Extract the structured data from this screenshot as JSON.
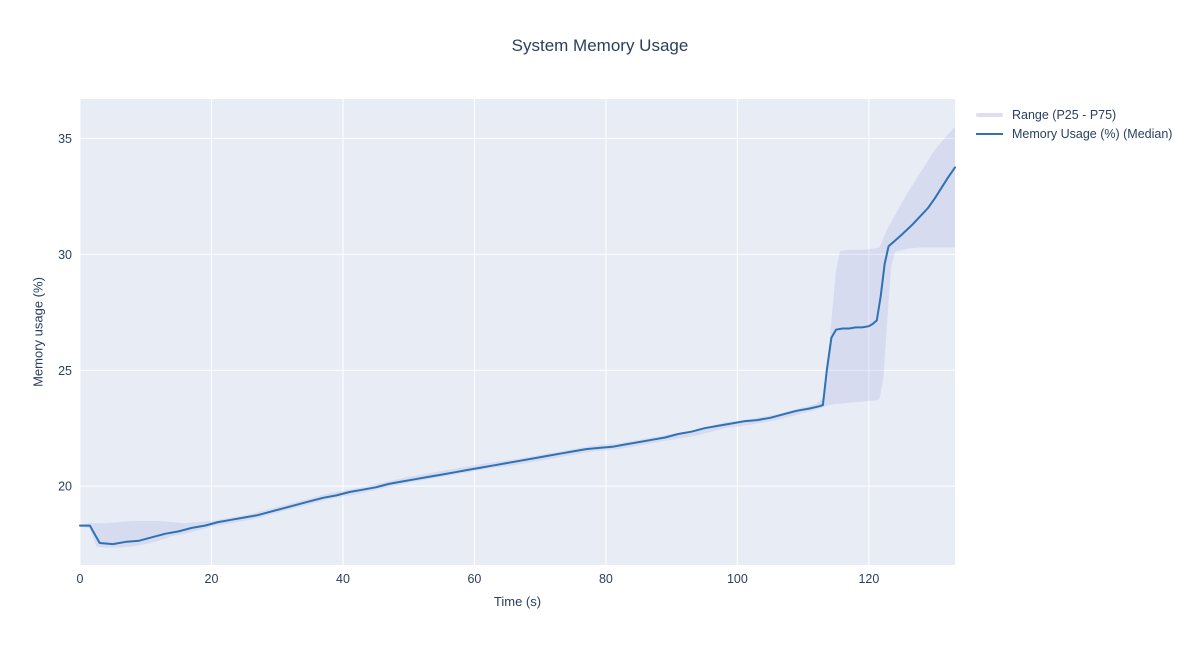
{
  "chart_data": {
    "type": "line",
    "title": "System Memory Usage",
    "xlabel": "Time (s)",
    "ylabel": "Memory usage (%)",
    "xlim": [
      0,
      133.1
    ],
    "ylim": [
      16.6,
      36.7
    ],
    "xticks": [
      0,
      20,
      40,
      60,
      80,
      100,
      120
    ],
    "yticks": [
      20,
      25,
      30,
      35
    ],
    "grid": true,
    "legend_position": "outside-top-right",
    "colors": {
      "background": "#ffffff",
      "plot_bg": "#e8ecf5",
      "grid": "#ffffff",
      "band_fill": "rgba(139,148,216,0.19)",
      "band_swatch": "#dcdef2",
      "line": "#2e72b3",
      "text": "#2a3f5f"
    },
    "series": [
      {
        "name": "Range (P25 - P75)",
        "type": "band",
        "x": [
          0,
          1.5,
          2.5,
          4,
          6,
          8,
          10,
          12,
          14,
          16,
          18,
          20,
          22,
          26,
          30,
          34,
          38,
          42,
          46,
          50,
          54,
          58,
          62,
          66,
          70,
          74,
          78,
          82,
          86,
          90,
          94,
          98,
          102,
          106,
          110,
          112,
          113,
          114,
          115,
          115.6,
          117,
          119,
          121,
          121.6,
          122.2,
          122.8,
          123.4,
          124,
          126,
          128,
          130,
          131.5,
          133.1
        ],
        "upper": [
          18.35,
          18.4,
          18.4,
          18.4,
          18.45,
          18.5,
          18.5,
          18.5,
          18.45,
          18.4,
          18.45,
          18.5,
          18.6,
          18.8,
          19.1,
          19.4,
          19.7,
          19.9,
          20.15,
          20.4,
          20.6,
          20.8,
          21.0,
          21.15,
          21.35,
          21.55,
          21.75,
          21.85,
          22.05,
          22.25,
          22.45,
          22.75,
          22.9,
          23.1,
          23.4,
          23.55,
          23.8,
          26.2,
          29.3,
          30.15,
          30.2,
          30.2,
          30.25,
          30.3,
          30.7,
          31.1,
          31.4,
          31.7,
          32.7,
          33.6,
          34.5,
          35.0,
          35.5
        ],
        "lower": [
          18.25,
          18.2,
          17.4,
          17.35,
          17.35,
          17.4,
          17.5,
          17.65,
          17.85,
          17.95,
          18.1,
          18.25,
          18.35,
          18.55,
          18.85,
          19.15,
          19.45,
          19.65,
          19.9,
          20.15,
          20.35,
          20.55,
          20.75,
          20.9,
          21.1,
          21.3,
          21.5,
          21.6,
          21.8,
          22.0,
          22.2,
          22.5,
          22.65,
          22.85,
          23.15,
          23.3,
          23.4,
          23.5,
          23.55,
          23.55,
          23.6,
          23.65,
          23.7,
          23.75,
          24.6,
          27.2,
          29.5,
          30.1,
          30.25,
          30.3,
          30.3,
          30.3,
          30.3
        ]
      },
      {
        "name": "Memory Usage (%) (Median)",
        "type": "line",
        "x": [
          0,
          1.5,
          2,
          3,
          5,
          7,
          9,
          11,
          13,
          15,
          17,
          19,
          21,
          23,
          25,
          27,
          29,
          31,
          33,
          35,
          37,
          39,
          41,
          43,
          45,
          47,
          49,
          51,
          53,
          55,
          57,
          59,
          61,
          63,
          65,
          67,
          69,
          71,
          73,
          75,
          77,
          79,
          81,
          83,
          85,
          87,
          89,
          91,
          93,
          95,
          97,
          99,
          101,
          103,
          105,
          107,
          109,
          111,
          112.5,
          113,
          113.6,
          114.3,
          115,
          116,
          117,
          118,
          119,
          120,
          120.6,
          121.2,
          121.8,
          122.4,
          123,
          123.8,
          125,
          126.5,
          128,
          129,
          130,
          131,
          132,
          133.1
        ],
        "y": [
          18.3,
          18.3,
          18.05,
          17.55,
          17.5,
          17.6,
          17.65,
          17.8,
          17.95,
          18.05,
          18.2,
          18.3,
          18.45,
          18.55,
          18.65,
          18.75,
          18.9,
          19.05,
          19.2,
          19.35,
          19.5,
          19.6,
          19.75,
          19.85,
          19.95,
          20.1,
          20.2,
          20.3,
          20.4,
          20.5,
          20.6,
          20.7,
          20.8,
          20.9,
          21.0,
          21.1,
          21.2,
          21.3,
          21.4,
          21.5,
          21.6,
          21.65,
          21.7,
          21.8,
          21.9,
          22.0,
          22.1,
          22.25,
          22.35,
          22.5,
          22.6,
          22.7,
          22.8,
          22.85,
          22.95,
          23.1,
          23.25,
          23.35,
          23.45,
          23.5,
          25.0,
          26.4,
          26.75,
          26.8,
          26.8,
          26.85,
          26.85,
          26.9,
          27.0,
          27.15,
          28.2,
          29.6,
          30.35,
          30.55,
          30.85,
          31.25,
          31.7,
          32.0,
          32.4,
          32.85,
          33.3,
          33.75
        ]
      }
    ]
  }
}
